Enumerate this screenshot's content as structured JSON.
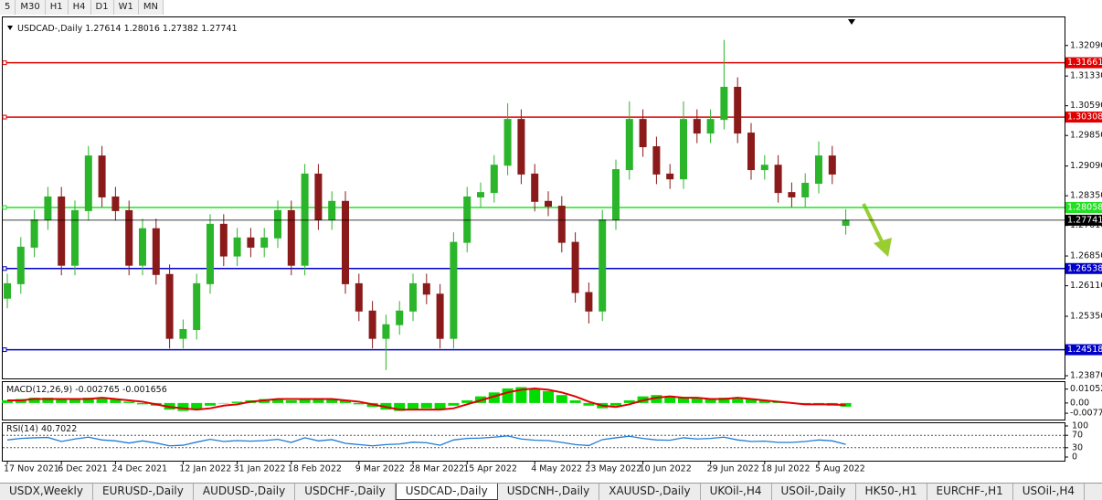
{
  "toolbar": [
    "5",
    "M30",
    "H1",
    "H4",
    "D1",
    "W1",
    "MN"
  ],
  "tabs": [
    "USDX,Weekly",
    "EURUSD-,Daily",
    "AUDUSD-,Daily",
    "USDCHF-,Daily",
    "USDCAD-,Daily",
    "USDCNH-,Daily",
    "XAUUSD-,Daily",
    "UKOil-,H4",
    "USOil-,Daily",
    "HK50-,H1",
    "EURCHF-,H1",
    "USOil-,H4"
  ],
  "active_tab": 4,
  "chart_data": [
    {
      "type": "candlestick",
      "symbol": "USDCAD-,Daily",
      "up_color": "#2bb52b",
      "down_color": "#8b1a1a",
      "categories": [
        "17 Nov 2021",
        null,
        null,
        null,
        "6 Dec 2021",
        null,
        null,
        null,
        "24 Dec 2021",
        null,
        null,
        null,
        null,
        "12 Jan 2022",
        null,
        null,
        null,
        "31 Jan 2022",
        null,
        null,
        null,
        "18 Feb 2022",
        null,
        null,
        null,
        null,
        "9 Mar 2022",
        null,
        null,
        null,
        "28 Mar 2022",
        null,
        null,
        null,
        "15 Apr 2022",
        null,
        null,
        null,
        null,
        "4 May 2022",
        null,
        null,
        null,
        "23 May 2022",
        null,
        null,
        null,
        "10 Jun 2022",
        null,
        null,
        null,
        null,
        "29 Jun 2022",
        null,
        null,
        null,
        "18 Jul 2022",
        null,
        null,
        null,
        "5 Aug 2022",
        null,
        null
      ],
      "open": [
        1.258,
        1.2616,
        1.2707,
        1.2775,
        1.2832,
        1.2662,
        1.2798,
        1.2934,
        1.2832,
        1.2798,
        1.2662,
        1.2753,
        1.2639,
        1.248,
        1.2502,
        1.2616,
        1.2764,
        1.2685,
        1.273,
        1.2707,
        1.273,
        1.2798,
        1.2662,
        1.2889,
        1.2775,
        1.2821,
        1.2616,
        1.2548,
        1.248,
        1.2514,
        1.2548,
        1.2616,
        1.259,
        1.248,
        1.2719,
        1.2832,
        1.2843,
        1.2911,
        1.3025,
        1.2889,
        1.2821,
        1.2809,
        1.2719,
        1.2594,
        1.2548,
        1.2775,
        1.29,
        1.3025,
        1.2957,
        1.2889,
        1.2877,
        1.3025,
        1.2991,
        1.3025,
        1.3105,
        1.2991,
        1.29,
        1.2911,
        1.2843,
        1.2832,
        1.2866,
        1.2934,
        1.27614
      ],
      "high": [
        1.2641,
        1.2732,
        1.28,
        1.2857,
        1.2857,
        1.2823,
        1.2959,
        1.2959,
        1.2857,
        1.2823,
        1.2778,
        1.2778,
        1.2664,
        1.2527,
        1.2641,
        1.2789,
        1.2789,
        1.2755,
        1.2755,
        1.2755,
        1.2823,
        1.2823,
        1.2914,
        1.2914,
        1.2846,
        1.2846,
        1.2641,
        1.2573,
        1.2539,
        1.2573,
        1.2641,
        1.2641,
        1.2615,
        1.2744,
        1.2857,
        1.2868,
        1.2936,
        1.3065,
        1.305,
        1.2914,
        1.2846,
        1.2834,
        1.2744,
        1.2619,
        1.28,
        1.2925,
        1.307,
        1.305,
        1.2982,
        1.2914,
        1.307,
        1.305,
        1.305,
        1.3223,
        1.313,
        1.3016,
        1.2936,
        1.2936,
        1.2868,
        1.2891,
        1.297,
        1.2959,
        1.28016
      ],
      "low": [
        1.2555,
        1.2591,
        1.2682,
        1.275,
        1.2637,
        1.2637,
        1.2773,
        1.2807,
        1.2773,
        1.2637,
        1.2637,
        1.2614,
        1.2455,
        1.2455,
        1.2477,
        1.2591,
        1.266,
        1.266,
        1.2682,
        1.2682,
        1.2705,
        1.2637,
        1.2637,
        1.275,
        1.275,
        1.2591,
        1.2523,
        1.2455,
        1.2401,
        1.2489,
        1.2523,
        1.2565,
        1.2455,
        1.2455,
        1.2694,
        1.2807,
        1.2818,
        1.2886,
        1.2864,
        1.2796,
        1.2784,
        1.2694,
        1.2569,
        1.2517,
        1.2523,
        1.275,
        1.2875,
        1.2932,
        1.2864,
        1.2852,
        1.2852,
        1.2966,
        1.2966,
        1.3,
        1.2966,
        1.2875,
        1.2875,
        1.2818,
        1.2807,
        1.2807,
        1.2841,
        1.2864,
        1.27382
      ],
      "close": [
        1.2616,
        1.2707,
        1.2775,
        1.2832,
        1.2662,
        1.2798,
        1.2934,
        1.2832,
        1.2798,
        1.2662,
        1.2753,
        1.2639,
        1.248,
        1.2502,
        1.2616,
        1.2764,
        1.2685,
        1.273,
        1.2707,
        1.273,
        1.2798,
        1.2662,
        1.2889,
        1.2775,
        1.2821,
        1.2616,
        1.2548,
        1.248,
        1.2514,
        1.2548,
        1.2616,
        1.259,
        1.248,
        1.2719,
        1.2832,
        1.2843,
        1.2911,
        1.3025,
        1.2889,
        1.2821,
        1.2809,
        1.2719,
        1.2594,
        1.2548,
        1.2775,
        1.29,
        1.3025,
        1.2957,
        1.2889,
        1.2877,
        1.3025,
        1.2991,
        1.3025,
        1.3105,
        1.2991,
        1.29,
        1.2911,
        1.2843,
        1.2832,
        1.2866,
        1.2934,
        1.2889,
        1.27741
      ],
      "ylim": [
        1.2378,
        1.3279
      ],
      "yticks": [
        {
          "value": 1.3209,
          "label": "1.32090"
        },
        {
          "value": 1.3133,
          "label": "1.31330"
        },
        {
          "value": 1.3059,
          "label": "1.30590"
        },
        {
          "value": 1.2985,
          "label": "1.29850"
        },
        {
          "value": 1.2909,
          "label": "1.29090"
        },
        {
          "value": 1.2835,
          "label": "1.28350"
        },
        {
          "value": 1.2761,
          "label": "1.27610"
        },
        {
          "value": 1.2685,
          "label": "1.26850"
        },
        {
          "value": 1.2611,
          "label": "1.26110"
        },
        {
          "value": 1.2535,
          "label": "1.25350"
        },
        {
          "value": 1.2387,
          "label": "1.23870"
        }
      ],
      "levels": [
        {
          "value": 1.31661,
          "color": "#e00000"
        },
        {
          "value": 1.30308,
          "color": "#e00000"
        },
        {
          "value": 1.28058,
          "color": "#22e022"
        },
        {
          "value": 1.26538,
          "color": "#0000c8"
        },
        {
          "value": 1.24518,
          "color": "#0000c8"
        }
      ]
    },
    {
      "type": "macd",
      "name": "MACD(12,26,9)",
      "hist_color": "#00dd00",
      "signal_color": "#e00000",
      "values": [
        0.002,
        0.003,
        0.004,
        0.004,
        0.003,
        0.003,
        0.004,
        0.004,
        0.003,
        0.001,
        -0.001,
        -0.002,
        -0.005,
        -0.006,
        -0.005,
        -0.002,
        0,
        0.001,
        0.002,
        0.003,
        0.003,
        0.002,
        0.003,
        0.003,
        0.003,
        0.002,
        -0.001,
        -0.003,
        -0.005,
        -0.006,
        -0.005,
        -0.004,
        -0.005,
        -0.002,
        0.002,
        0.005,
        0.008,
        0.011,
        0.012,
        0.011,
        0.009,
        0.006,
        0.002,
        -0.002,
        -0.004,
        -0.002,
        0.002,
        0.005,
        0.006,
        0.005,
        0.004,
        0.004,
        0.003,
        0.004,
        0.004,
        0.003,
        0.002,
        0.001,
        0,
        -0.001,
        -0.001,
        -0.002,
        -0.002765
      ],
      "signal": [
        0.002,
        0.002,
        0.003,
        0.003,
        0.003,
        0.003,
        0.003,
        0.004,
        0.003,
        0.002,
        0.001,
        -0.001,
        -0.003,
        -0.004,
        -0.005,
        -0.004,
        -0.002,
        -0.001,
        0.001,
        0.002,
        0.003,
        0.003,
        0.003,
        0.003,
        0.003,
        0.002,
        0.001,
        -0.001,
        -0.003,
        -0.005,
        -0.005,
        -0.005,
        -0.005,
        -0.004,
        -0.001,
        0.002,
        0.005,
        0.008,
        0.01,
        0.011,
        0.01,
        0.008,
        0.005,
        0.001,
        -0.002,
        -0.003,
        -0.001,
        0.002,
        0.004,
        0.005,
        0.004,
        0.004,
        0.003,
        0.003,
        0.004,
        0.003,
        0.002,
        0.001,
        0,
        -0.001,
        -0.001,
        -0.001,
        -0.001656
      ],
      "ylim": [
        -0.0125,
        0.0158
      ],
      "yticks": [
        0.01052,
        {
          "value": 0,
          "label": "0.00"
        },
        -0.00774
      ]
    },
    {
      "type": "rsi",
      "name": "RSI(14)",
      "color": "#1e7bd6",
      "values": [
        55,
        60,
        62,
        63,
        50,
        58,
        64,
        55,
        52,
        45,
        52,
        45,
        36,
        38,
        48,
        57,
        50,
        53,
        51,
        53,
        57,
        47,
        62,
        52,
        56,
        44,
        40,
        36,
        40,
        42,
        48,
        46,
        38,
        55,
        60,
        61,
        64,
        68,
        58,
        54,
        53,
        47,
        40,
        37,
        56,
        62,
        67,
        60,
        55,
        54,
        62,
        58,
        60,
        64,
        55,
        50,
        51,
        47,
        47,
        50,
        55,
        52,
        40.7022
      ],
      "ylim": [
        0,
        100
      ],
      "yticks": [
        100,
        70,
        30,
        0
      ],
      "levels": [
        70,
        30
      ]
    }
  ]
}
